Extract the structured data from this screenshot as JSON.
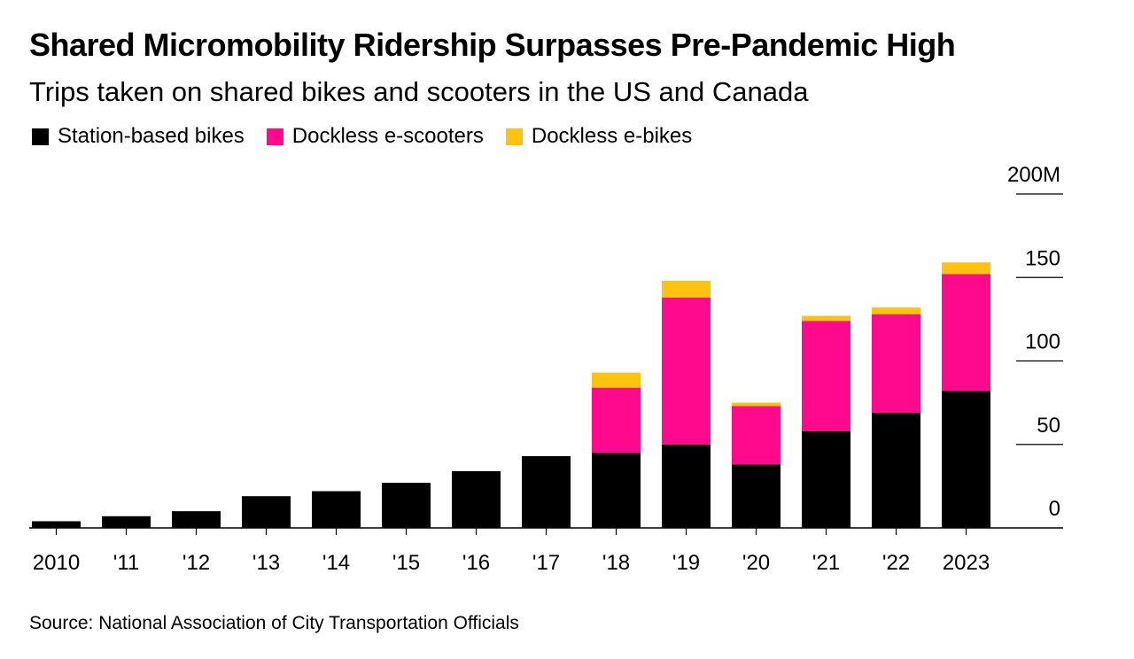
{
  "title": "Shared Micromobility Ridership Surpasses Pre-Pandemic High",
  "subtitle": "Trips taken on shared bikes and scooters in the US and Canada",
  "source": "Source: National Association of City Transportation Officials",
  "colors": {
    "station": "#000000",
    "scooter": "#ff0a8c",
    "ebike": "#ffc20e",
    "axis": "#000000"
  },
  "chart_data": {
    "type": "bar",
    "stacked": true,
    "categories": [
      "2010",
      "'11",
      "'12",
      "'13",
      "'14",
      "'15",
      "'16",
      "'17",
      "'18",
      "'19",
      "'20",
      "'21",
      "'22",
      "2023"
    ],
    "series": [
      {
        "name": "Station-based bikes",
        "color_key": "station",
        "values": [
          4,
          7,
          10,
          19,
          22,
          27,
          34,
          43,
          45,
          50,
          38,
          58,
          69,
          82
        ]
      },
      {
        "name": "Dockless e-scooters",
        "color_key": "scooter",
        "values": [
          0,
          0,
          0,
          0,
          0,
          0,
          0,
          0,
          39,
          88,
          35,
          66,
          59,
          70
        ]
      },
      {
        "name": "Dockless e-bikes",
        "color_key": "ebike",
        "values": [
          0,
          0,
          0,
          0,
          0,
          0,
          0,
          0,
          9,
          10,
          2,
          3,
          4,
          7
        ]
      }
    ],
    "y_ticks": [
      0,
      50,
      100,
      150,
      200
    ],
    "y_tick_labels": [
      "0",
      "50",
      "100",
      "150",
      "200M"
    ],
    "ylim": [
      0,
      200
    ],
    "y_axis_position": "right",
    "grid": false,
    "legend_position": "top-left"
  }
}
